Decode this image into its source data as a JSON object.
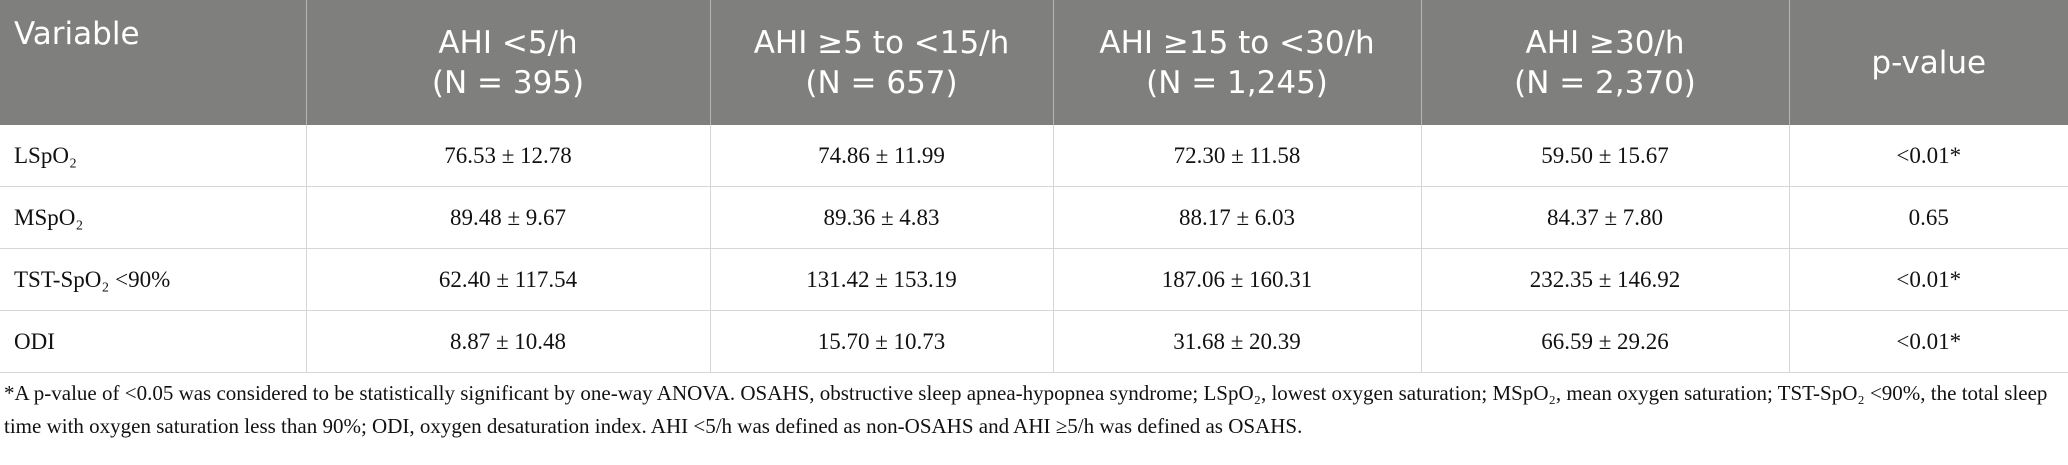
{
  "table": {
    "header": [
      [
        "Variable"
      ],
      [
        "AHI <5/h",
        "(N = 395)"
      ],
      [
        "AHI ≥5 to <15/h",
        "(N = 657)"
      ],
      [
        "AHI ≥15 to <30/h",
        "(N = 1,245)"
      ],
      [
        "AHI ≥30/h",
        "(N = 2,370)"
      ],
      [
        "p-value"
      ]
    ],
    "rows": [
      [
        "LSpO₂",
        "76.53 ± 12.78",
        "74.86 ± 11.99",
        "72.30 ± 11.58",
        "59.50 ± 15.67",
        "<0.01*"
      ],
      [
        "MSpO₂",
        "89.48 ± 9.67",
        "89.36 ± 4.83",
        "88.17 ± 6.03",
        "84.37 ± 7.80",
        "0.65"
      ],
      [
        "TST-SpO₂ <90%",
        "62.40 ± 117.54",
        "131.42 ± 153.19",
        "187.06 ± 160.31",
        "232.35 ± 146.92",
        "<0.01*"
      ],
      [
        "ODI",
        "8.87 ± 10.48",
        "15.70 ± 10.73",
        "31.68 ± 20.39",
        "66.59 ± 29.26",
        "<0.01*"
      ]
    ]
  },
  "footnote": "*A p-value of <0.05 was considered to be statistically significant by one-way ANOVA. OSAHS, obstructive sleep apnea-hypopnea syndrome; LSpO₂, lowest oxygen saturation; MSpO₂, mean oxygen saturation; TST-SpO₂ <90%, the total sleep time with oxygen saturation less than 90%; ODI, oxygen desaturation index. AHI <5/h was defined as non-OSAHS and AHI ≥5/h was defined as OSAHS."
}
